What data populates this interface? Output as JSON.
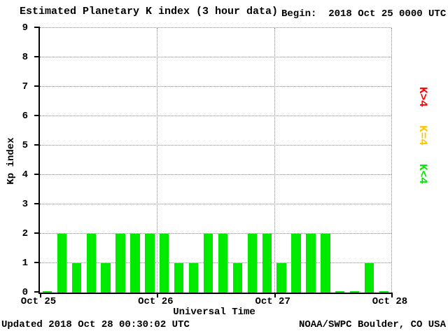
{
  "title": "Estimated Planetary K index (3 hour data)",
  "begin": "Begin:  2018 Oct 25 0000 UTC",
  "footer": {
    "updated": "Updated 2018 Oct 28 00:30:02 UTC",
    "source": "NOAA/SWPC Boulder, CO USA"
  },
  "chart_data": {
    "type": "bar",
    "title": "Estimated Planetary K index (3 hour data)",
    "xlabel": "Universal Time",
    "ylabel": "Kp index",
    "ylim": [
      0,
      9
    ],
    "yticks": [
      0,
      1,
      2,
      3,
      4,
      5,
      6,
      7,
      8,
      9
    ],
    "xticks": [
      "Oct 25",
      "Oct 26",
      "Oct 27",
      "Oct 28"
    ],
    "bin_hours": 3,
    "begin_time": "2018 Oct 25 0000 UTC",
    "values": [
      0,
      2,
      1,
      2,
      1,
      2,
      2,
      2,
      2,
      1,
      1,
      2,
      2,
      1,
      2,
      2,
      1,
      2,
      2,
      2,
      0,
      0,
      1,
      0
    ],
    "bar_colors": {
      "low": "#00ea00",
      "mid": "#ffc400",
      "high": "#ff0000"
    },
    "legend": [
      {
        "label": "K>4",
        "color": "#ff0000",
        "name": "legend-k-above-4"
      },
      {
        "label": "K=4",
        "color": "#ffc400",
        "name": "legend-k-equal-4"
      },
      {
        "label": "K<4",
        "color": "#00ea00",
        "name": "legend-k-below-4"
      }
    ],
    "grid": "dotted",
    "legend_position": "right"
  }
}
